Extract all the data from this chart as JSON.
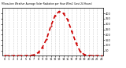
{
  "title": "Milwaukee Weather Average Solar Radiation per Hour W/m2 (Last 24 Hours)",
  "hours": [
    0,
    1,
    2,
    3,
    4,
    5,
    6,
    7,
    8,
    9,
    10,
    11,
    12,
    13,
    14,
    15,
    16,
    17,
    18,
    19,
    20,
    21,
    22,
    23
  ],
  "values": [
    0,
    0,
    0,
    0,
    0,
    0,
    2,
    8,
    30,
    80,
    160,
    280,
    380,
    420,
    400,
    340,
    230,
    120,
    40,
    10,
    2,
    0,
    0,
    0
  ],
  "line_color": "#cc0000",
  "bg_color": "#ffffff",
  "plot_bg": "#ffffff",
  "grid_color": "#bbbbbb",
  "ylim": [
    0,
    450
  ],
  "xlim": [
    -0.5,
    23.5
  ],
  "tick_color": "#000000",
  "right_ticks": [
    50,
    100,
    150,
    200,
    250,
    300,
    350,
    400
  ],
  "line_width": 1.2,
  "dash_pattern": [
    3,
    2
  ]
}
